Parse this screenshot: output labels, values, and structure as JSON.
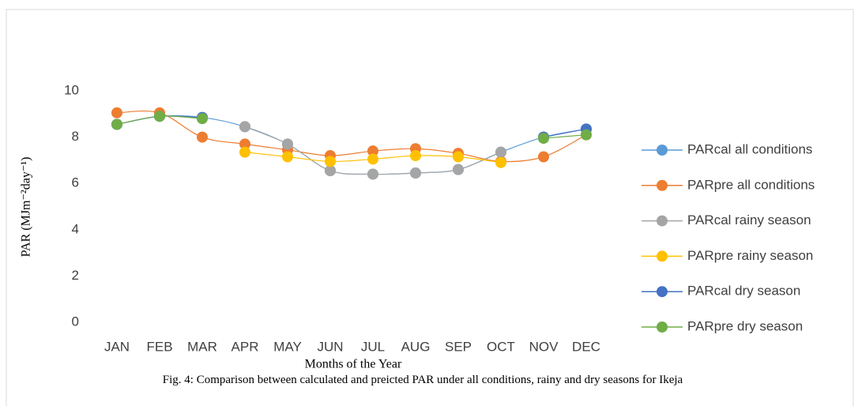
{
  "chart_data": {
    "type": "line",
    "y_label": "PAR (MJm⁻²day⁻¹)",
    "x_label": "Months of the Year",
    "caption": "Fig. 4: Comparison between calculated and preicted PAR under all conditions, rainy and dry seasons for Ikeja",
    "categories": [
      "JAN",
      "FEB",
      "MAR",
      "APR",
      "MAY",
      "JUN",
      "JUL",
      "AUG",
      "SEP",
      "OCT",
      "NOV",
      "DEC"
    ],
    "ylim": [
      0,
      10
    ],
    "yticks": [
      0,
      2,
      4,
      6,
      8,
      10
    ],
    "smooth": true,
    "series": [
      {
        "name": "PARcal all conditions",
        "color": "#5b9bd5",
        "values": [
          8.55,
          8.9,
          8.85,
          8.45,
          7.7,
          6.55,
          6.4,
          6.45,
          6.6,
          7.35,
          8.0,
          8.35
        ]
      },
      {
        "name": "PARpre all conditions",
        "color": "#ed7d31",
        "values": [
          9.05,
          9.05,
          8.0,
          7.7,
          7.45,
          7.2,
          7.4,
          7.5,
          7.3,
          6.95,
          7.15,
          8.1
        ]
      },
      {
        "name": "PARcal rainy season",
        "color": "#a5a5a5",
        "values": [
          null,
          null,
          null,
          8.45,
          7.7,
          6.55,
          6.4,
          6.45,
          6.6,
          7.35,
          null,
          null
        ]
      },
      {
        "name": "PARpre rainy season",
        "color": "#ffc000",
        "values": [
          null,
          null,
          null,
          7.35,
          7.15,
          6.95,
          7.05,
          7.2,
          7.15,
          6.9,
          null,
          null
        ]
      },
      {
        "name": "PARcal dry season",
        "color": "#4472c4",
        "values": [
          8.55,
          8.9,
          8.85,
          null,
          null,
          null,
          null,
          null,
          null,
          null,
          8.0,
          8.35
        ]
      },
      {
        "name": "PARpre dry season",
        "color": "#70ad47",
        "values": [
          8.55,
          8.9,
          8.8,
          null,
          null,
          null,
          null,
          null,
          null,
          null,
          7.95,
          8.1
        ]
      }
    ]
  }
}
